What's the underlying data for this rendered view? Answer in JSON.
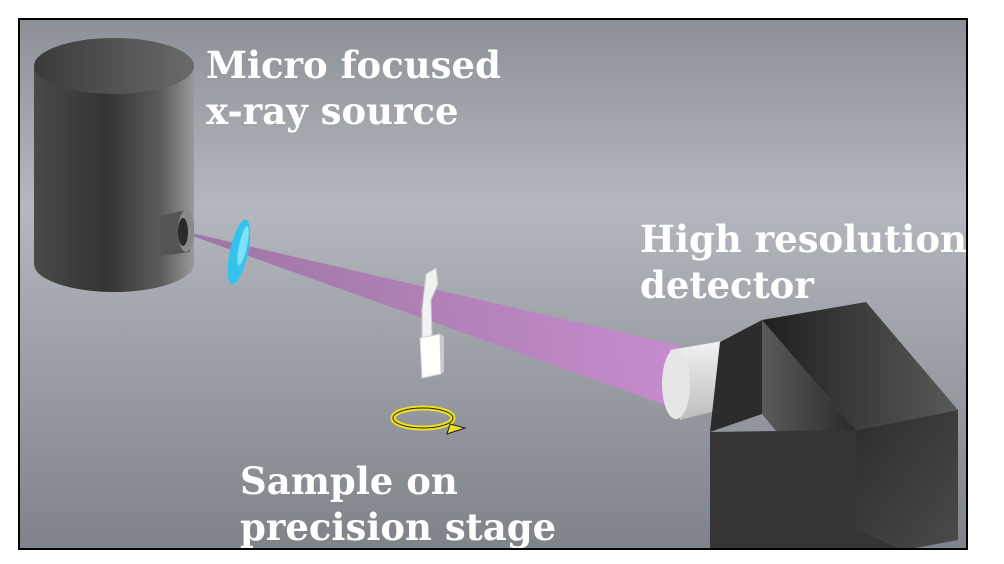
{
  "labels": {
    "source": [
      "Micro focused",
      "x-ray source"
    ],
    "detector": [
      "High resolution",
      "detector"
    ],
    "sample": [
      "Sample on",
      "precision stage"
    ]
  },
  "colors": {
    "beam": "#c07cc0",
    "filter": "#33c4ee",
    "rotation_arrow": "#f2e21c"
  }
}
